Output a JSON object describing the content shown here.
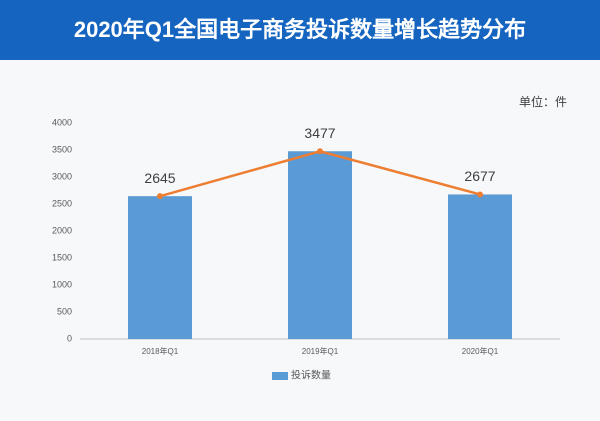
{
  "chart_data": {
    "type": "bar_line",
    "title": "2020年Q1全国电子商务投诉数量增长趋势分布",
    "unit_label": "单位：件",
    "categories": [
      "2018年Q1",
      "2019年Q1",
      "2020年Q1"
    ],
    "series": [
      {
        "name": "投诉数量",
        "color": "#5b9bd5",
        "line_color": "#ed7d31",
        "values": [
          2645,
          3477,
          2677
        ]
      }
    ],
    "ylim": [
      0,
      4000
    ],
    "yticks": [
      0,
      500,
      1000,
      1500,
      2000,
      2500,
      3000,
      3500,
      4000
    ],
    "grid": false,
    "legend": "bottom"
  }
}
